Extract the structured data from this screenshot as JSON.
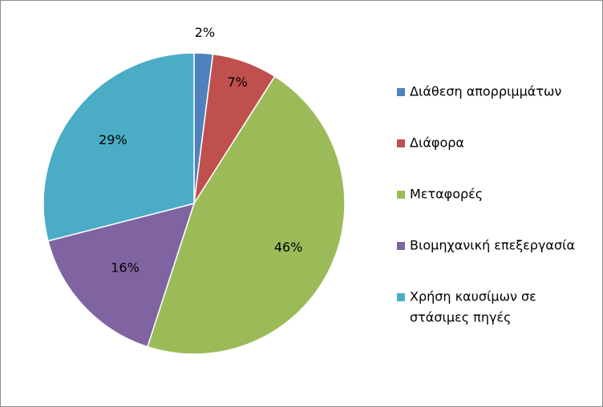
{
  "chart_data": {
    "type": "pie",
    "categories": [
      "Διάθεση απορριμμάτων",
      "Διάφορα",
      "Μεταφορές",
      "Βιομηχανική επεξεργασία",
      "Χρήση καυσίμων σε στάσιμες πηγές"
    ],
    "values": [
      2,
      7,
      46,
      16,
      29
    ],
    "value_labels": [
      "2%",
      "7%",
      "46%",
      "16%",
      "29%"
    ],
    "colors": [
      "#4F81BD",
      "#C0504D",
      "#9BBB59",
      "#8064A2",
      "#4BACC6"
    ],
    "legend_lines": [
      [
        "Διάθεση απορριμμάτων"
      ],
      [
        "Διάφορα"
      ],
      [
        "Μεταφορές"
      ],
      [
        "Βιομηχανική επεξεργασία"
      ],
      [
        "Χρήση καυσίμων σε",
        "στάσιμες πηγές"
      ]
    ],
    "legend_placement": "right",
    "start_angle_deg": 0,
    "direction": "clockwise"
  }
}
